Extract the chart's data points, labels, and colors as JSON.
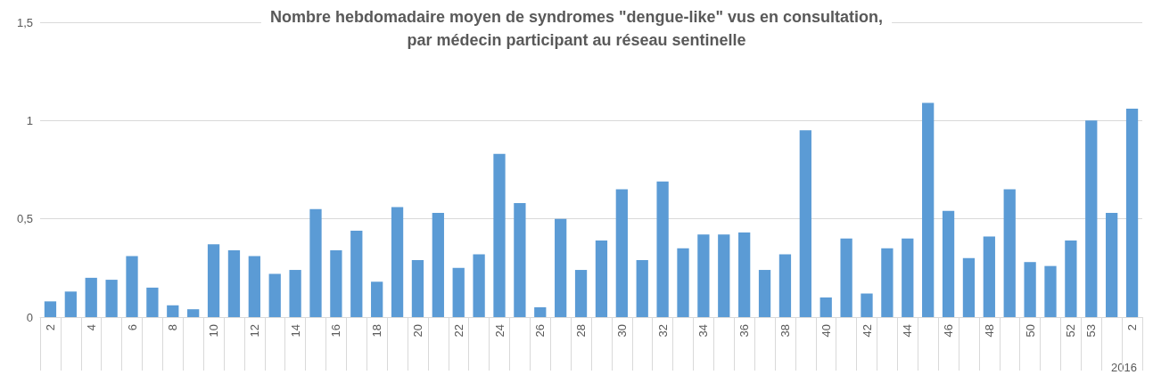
{
  "chart_data": {
    "type": "bar",
    "title": "Nombre hebdomadaire moyen de syndromes \"dengue-like\" vus en consultation,\npar médecin participant au réseau sentinelle",
    "categories": [
      "2",
      null,
      "4",
      null,
      "6",
      null,
      "8",
      null,
      "10",
      null,
      "12",
      null,
      "14",
      null,
      "16",
      null,
      "18",
      null,
      "20",
      null,
      "22",
      null,
      "24",
      null,
      "26",
      null,
      "28",
      null,
      "30",
      null,
      "32",
      null,
      "34",
      null,
      "36",
      null,
      "38",
      null,
      "40",
      null,
      "42",
      null,
      "44",
      null,
      "46",
      null,
      "48",
      null,
      "50",
      null,
      "52",
      "53",
      null,
      "2"
    ],
    "values": [
      0.08,
      0.13,
      0.2,
      0.19,
      0.31,
      0.15,
      0.06,
      0.04,
      0.37,
      0.34,
      0.31,
      0.22,
      0.24,
      0.55,
      0.34,
      0.44,
      0.18,
      0.56,
      0.29,
      0.53,
      0.25,
      0.32,
      0.83,
      0.58,
      0.05,
      0.5,
      0.24,
      0.39,
      0.65,
      0.29,
      0.69,
      0.35,
      0.42,
      0.42,
      0.43,
      0.24,
      0.32,
      0.95,
      0.1,
      0.4,
      0.12,
      0.35,
      0.4,
      1.09,
      0.54,
      0.3,
      0.41,
      0.65,
      0.28,
      0.26,
      0.39,
      1.0,
      0.53,
      1.06
    ],
    "color": "#5b9bd5",
    "ylim": [
      0,
      1.5
    ],
    "yticks": [
      0,
      {
        "value": 0.5,
        "label": "0,5"
      },
      1,
      {
        "value": 1.5,
        "label": "1,5"
      }
    ],
    "grid": "y",
    "annotations": [
      "2016"
    ]
  }
}
